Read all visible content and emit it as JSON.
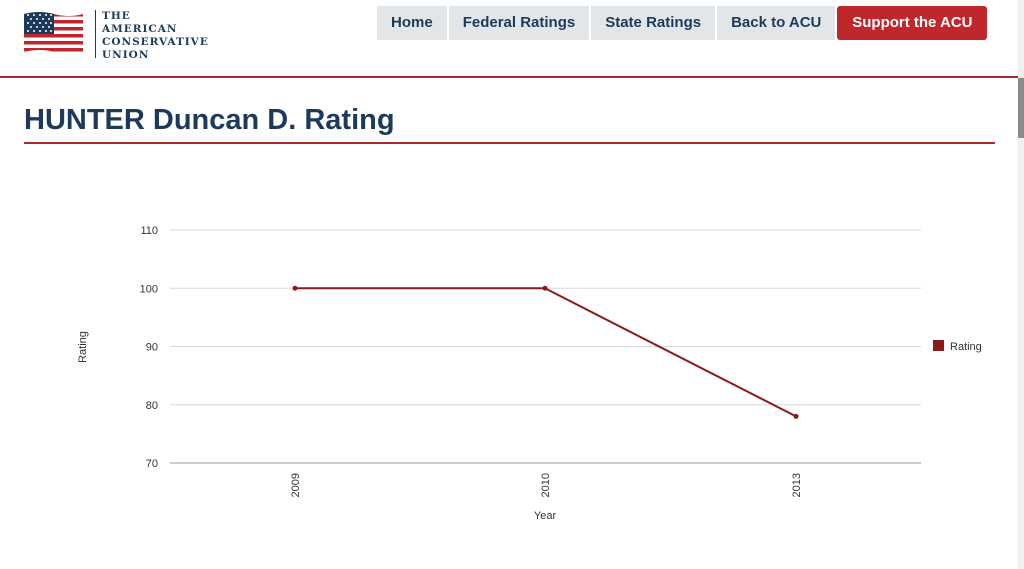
{
  "logo": {
    "lines": [
      "THE",
      "AMERICAN",
      "CONSERVATIVE",
      "UNION"
    ]
  },
  "nav": {
    "items": [
      "Home",
      "Federal Ratings",
      "State Ratings",
      "Back to ACU"
    ],
    "support_label": "Support the ACU"
  },
  "page": {
    "title": "HUNTER Duncan D. Rating"
  },
  "colors": {
    "navy": "#1d3a5a",
    "accent_red": "#a42a2c",
    "button_red": "#c0272d",
    "series": "#8b1a1a"
  },
  "chart_data": {
    "type": "line",
    "categories": [
      "2009",
      "2010",
      "2013"
    ],
    "series": [
      {
        "name": "Rating",
        "values": [
          100,
          100,
          78
        ]
      }
    ],
    "xlabel": "Year",
    "ylabel": "Rating",
    "ylim": [
      70,
      110
    ],
    "yticks": [
      70,
      80,
      90,
      100,
      110
    ],
    "grid": true,
    "legend": "right"
  }
}
